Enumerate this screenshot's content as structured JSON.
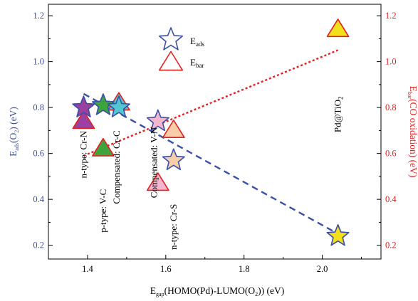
{
  "chart_data": {
    "type": "scatter",
    "x_axis": {
      "label_main": "E",
      "label_sub": "gap",
      "label_rest": "(HOMO(Pd)-LUMO(O",
      "label_sub2": "2",
      "label_end": ")) (eV)",
      "range": [
        1.3,
        2.15
      ],
      "ticks": [
        1.4,
        1.6,
        1.8,
        2.0
      ],
      "tick_labels": [
        "1.4",
        "1.6",
        "1.8",
        "2.0"
      ],
      "color": "#000000"
    },
    "y_left": {
      "label_main": "E",
      "label_sub": "ads",
      "label_mid": "(O",
      "label_sub2": "2",
      "label_end": ") (eV)",
      "range": [
        0.14,
        1.25
      ],
      "ticks": [
        0.2,
        0.4,
        0.6,
        0.8,
        1.0,
        1.2
      ],
      "tick_labels": [
        "0.2",
        "0.4",
        "0.6",
        "0.8",
        "1.0",
        "1.2"
      ],
      "color": "#3a4fa8"
    },
    "y_right": {
      "label_main": "E",
      "label_sub": "bar",
      "label_end": "(CO oxidation) (eV)",
      "range": [
        0.14,
        1.25
      ],
      "ticks": [
        0.2,
        0.4,
        0.6,
        0.8,
        1.0,
        1.2
      ],
      "tick_labels": [
        "0.2",
        "0.4",
        "0.6",
        "0.8",
        "1.0",
        "1.2"
      ],
      "color": "#e32020"
    },
    "legend": {
      "position": "top-center",
      "items": [
        {
          "marker": "star",
          "label_main": "E",
          "label_sub": "ads",
          "color": "#3a4fa8"
        },
        {
          "marker": "triangle",
          "label_main": "E",
          "label_sub": "bar",
          "color": "#e32020"
        }
      ]
    },
    "series": [
      {
        "name": "Eads",
        "marker": "star",
        "points": [
          {
            "x": 1.39,
            "y": 0.8,
            "fill": "#9b3fa0"
          },
          {
            "x": 1.44,
            "y": 0.81,
            "fill": "#3da43d"
          },
          {
            "x": 1.48,
            "y": 0.8,
            "fill": "#53c6d0"
          },
          {
            "x": 1.58,
            "y": 0.74,
            "fill": "#f2b6cf"
          },
          {
            "x": 1.62,
            "y": 0.57,
            "fill": "#f8cda8"
          },
          {
            "x": 2.04,
            "y": 0.24,
            "fill": "#f2e01c"
          }
        ]
      },
      {
        "name": "Ebar",
        "marker": "triangle",
        "points": [
          {
            "x": 1.39,
            "y": 0.74,
            "fill": "#9b3fa0"
          },
          {
            "x": 1.44,
            "y": 0.62,
            "fill": "#3da43d"
          },
          {
            "x": 1.48,
            "y": 0.82,
            "fill": "#53c6d0"
          },
          {
            "x": 1.58,
            "y": 0.47,
            "fill": "#f2b6cf"
          },
          {
            "x": 1.62,
            "y": 0.7,
            "fill": "#f8cda8"
          },
          {
            "x": 2.04,
            "y": 1.14,
            "fill": "#f2e01c"
          }
        ]
      }
    ],
    "fit_lines": [
      {
        "series": "Eads",
        "style": "dashed",
        "color": "#3a4fa8",
        "x": [
          1.39,
          2.04
        ],
        "y": [
          0.86,
          0.25
        ]
      },
      {
        "series": "Ebar",
        "style": "dotted",
        "color": "#e32020",
        "x": [
          1.39,
          2.04
        ],
        "y": [
          0.59,
          1.05
        ]
      }
    ],
    "annotations": [
      {
        "text": "n-type: Cr-N",
        "x": 1.39,
        "y": 0.595
      },
      {
        "text": "p-type: V-C",
        "x": 1.44,
        "y": 0.35
      },
      {
        "text": "Compensated: Cr-C",
        "x": 1.475,
        "y": 0.54
      },
      {
        "text": "Compensated: V-N",
        "x": 1.57,
        "y": 0.56
      },
      {
        "text": "n-type: Cr-S",
        "x": 1.62,
        "y": 0.28
      },
      {
        "text": "Pd@TiO",
        "text_sub": "2",
        "x": 2.04,
        "y": 0.77
      }
    ]
  }
}
